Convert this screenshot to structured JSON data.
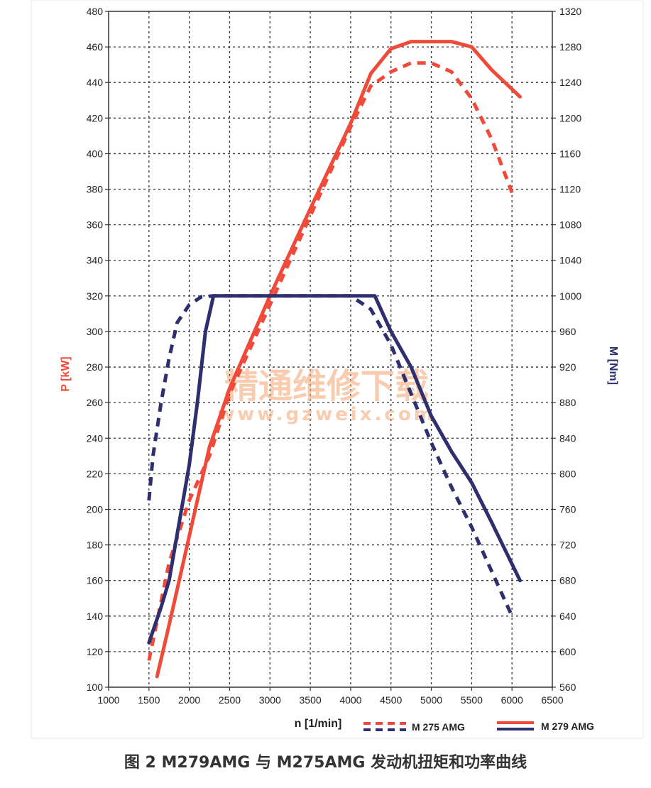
{
  "chart_data": {
    "type": "line",
    "xlabel": "n [1/min]",
    "ylabel_left": "P [kW]",
    "ylabel_right": "M [Nm]",
    "xlim": [
      1000,
      6500
    ],
    "x_ticks": [
      1000,
      1500,
      2000,
      2500,
      3000,
      3500,
      4000,
      4500,
      5000,
      5500,
      6000,
      6500
    ],
    "ylim_left": [
      100,
      480
    ],
    "y_ticks_left": [
      100,
      120,
      140,
      160,
      180,
      200,
      220,
      240,
      260,
      280,
      300,
      320,
      340,
      360,
      380,
      400,
      420,
      440,
      460,
      480
    ],
    "ylim_right": [
      560,
      1320
    ],
    "y_ticks_right": [
      560,
      600,
      640,
      680,
      720,
      760,
      800,
      840,
      880,
      920,
      960,
      1000,
      1040,
      1080,
      1120,
      1160,
      1200,
      1240,
      1280,
      1320
    ],
    "grid": true,
    "legend_position": "bottom-right",
    "colors": {
      "power": "#f04a3a",
      "torque": "#2d2f6e"
    },
    "series": [
      {
        "name": "M 275 AMG",
        "kind": "power",
        "axis": "left",
        "style": "dashed",
        "x": [
          1500,
          1750,
          2000,
          2250,
          2500,
          3000,
          3500,
          4000,
          4250,
          4500,
          4750,
          5000,
          5250,
          5500,
          5750,
          6000
        ],
        "y": [
          115,
          170,
          205,
          230,
          265,
          315,
          365,
          415,
          438,
          446,
          451,
          451,
          446,
          431,
          408,
          378
        ]
      },
      {
        "name": "M 275 AMG",
        "kind": "torque",
        "axis": "right",
        "style": "dashed",
        "x": [
          1500,
          1550,
          1650,
          1750,
          1850,
          2000,
          2150,
          2300,
          3000,
          3500,
          4000,
          4250,
          4500,
          4750,
          5000,
          5250,
          5500,
          5750,
          6000
        ],
        "y": [
          770,
          820,
          880,
          930,
          970,
          990,
          999,
          1000,
          1000,
          1000,
          1000,
          985,
          945,
          890,
          835,
          785,
          740,
          690,
          640
        ]
      },
      {
        "name": "M 279 AMG",
        "kind": "power",
        "axis": "left",
        "style": "solid",
        "x": [
          1600,
          1750,
          2000,
          2250,
          2500,
          3000,
          3500,
          4000,
          4250,
          4500,
          4750,
          5000,
          5250,
          5500,
          5750,
          6100
        ],
        "y": [
          106,
          135,
          185,
          235,
          268,
          320,
          369,
          417,
          445,
          459,
          463,
          463,
          463,
          460,
          447,
          432
        ]
      },
      {
        "name": "M 279 AMG",
        "kind": "torque",
        "axis": "right",
        "style": "solid",
        "x": [
          1500,
          1650,
          1750,
          2000,
          2100,
          2200,
          2300,
          3000,
          3500,
          4000,
          4300,
          4500,
          4750,
          5000,
          5250,
          5500,
          5750,
          6100
        ],
        "y": [
          610,
          650,
          680,
          810,
          880,
          960,
          1000,
          1000,
          1000,
          1000,
          1000,
          960,
          920,
          865,
          825,
          790,
          745,
          680
        ]
      }
    ],
    "legend": [
      {
        "label": "M 275 AMG",
        "style": "dashed"
      },
      {
        "label": "M 279 AMG",
        "style": "solid"
      }
    ]
  },
  "watermark": {
    "line1": "精通维修下载",
    "line2": "www.gzweix.com"
  },
  "caption": "图 2  M279AMG 与 M275AMG 发动机扭矩和功率曲线"
}
